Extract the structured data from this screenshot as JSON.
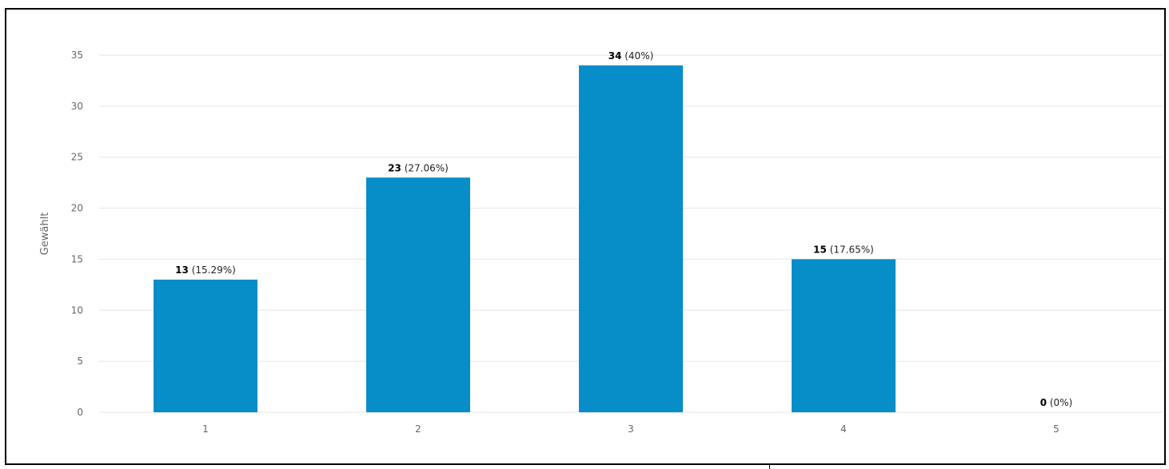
{
  "chart_data": {
    "type": "bar",
    "title": "",
    "xlabel": "",
    "ylabel": "Gewählt",
    "categories": [
      "1",
      "2",
      "3",
      "4",
      "5"
    ],
    "values": [
      13,
      23,
      34,
      15,
      0
    ],
    "percent_labels": [
      "(15.29%)",
      "(27.06%)",
      "(40%)",
      "(17.65%)",
      "(0%)"
    ],
    "y_ticks": [
      "0",
      "5",
      "10",
      "15",
      "20",
      "25",
      "30",
      "35"
    ],
    "ylim": [
      0,
      35
    ],
    "grid": true,
    "legend": "none",
    "bar_color": "#078dc8",
    "grid_color": "#e6e6e6"
  }
}
